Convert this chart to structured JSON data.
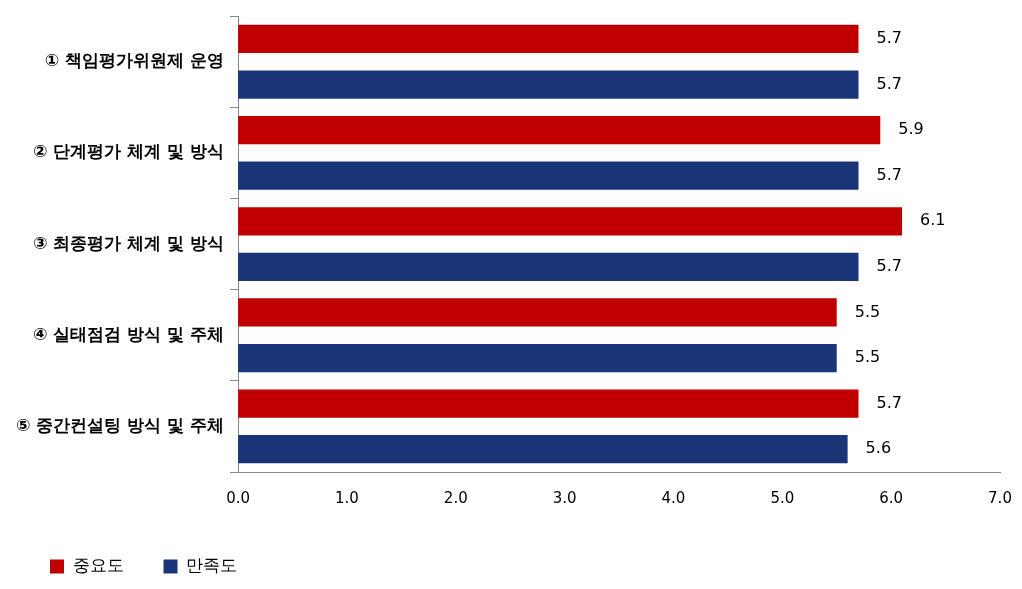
{
  "chart_data": {
    "type": "bar",
    "orientation": "horizontal",
    "categories": [
      "① 책임평가위원제 운영",
      "② 단계평가 체계 및 방식",
      "③ 최종평가 체계 및 방식",
      "④ 실태점검 방식 및 주체",
      "⑤ 중간컨설팅 방식 및 주체"
    ],
    "series": [
      {
        "name": "중요도",
        "color": "#c00000",
        "values": [
          5.7,
          5.9,
          6.1,
          5.5,
          5.7
        ]
      },
      {
        "name": "만족도",
        "color": "#1a3478",
        "values": [
          5.7,
          5.7,
          5.7,
          5.5,
          5.6
        ]
      }
    ],
    "xlim": [
      0,
      7
    ],
    "xticks": [
      {
        "value": 0,
        "label": "0.0"
      },
      {
        "value": 1,
        "label": "1.0"
      },
      {
        "value": 2,
        "label": "2.0"
      },
      {
        "value": 3,
        "label": "3.0"
      },
      {
        "value": 4,
        "label": "4.0"
      },
      {
        "value": 5,
        "label": "5.0"
      },
      {
        "value": 6,
        "label": "6.0"
      },
      {
        "value": 7,
        "label": "7.0"
      }
    ],
    "data_labels": true,
    "legend": "bottom",
    "grid": false
  }
}
